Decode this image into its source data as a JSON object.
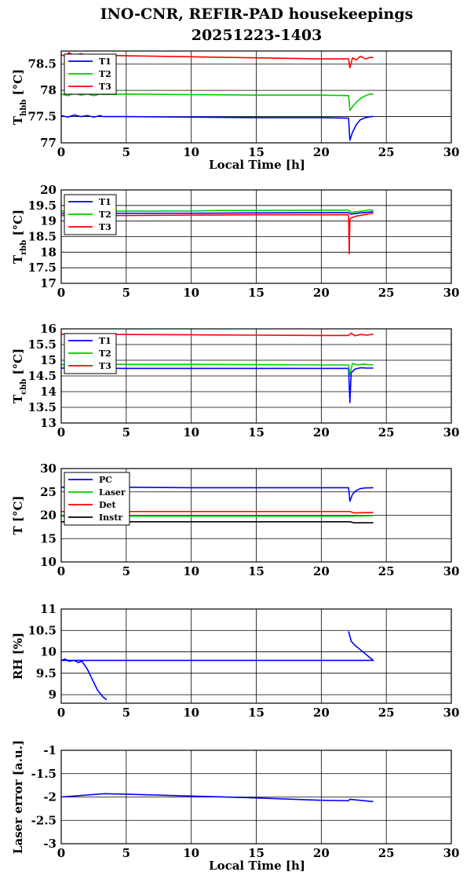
{
  "title_line1": "INO-CNR, REFIR-PAD housekeepings",
  "title_line2": "20251223-1403",
  "chart_data": [
    {
      "type": "line",
      "ylabel": "T",
      "ylabel_sub": "hbb",
      "ylabel_unit": " [°C]",
      "xlabel": "Local Time [h]",
      "xlim": [
        0,
        30
      ],
      "ylim": [
        77,
        78.75
      ],
      "yticks": [
        77,
        77.5,
        78,
        78.5
      ],
      "xticks": [
        0,
        5,
        10,
        15,
        20,
        25,
        30
      ],
      "grid": true,
      "legend_position": "top-left",
      "series": [
        {
          "name": "T1",
          "color": "#0000ff",
          "x": [
            0,
            0.5,
            1,
            1.5,
            2,
            2.5,
            3,
            3.2,
            5,
            10,
            15,
            20,
            22.1,
            22.2,
            22.4,
            22.7,
            23,
            23.4,
            23.8,
            24
          ],
          "y": [
            77.52,
            77.49,
            77.53,
            77.5,
            77.52,
            77.49,
            77.52,
            77.5,
            77.5,
            77.49,
            77.48,
            77.48,
            77.47,
            77.05,
            77.2,
            77.35,
            77.44,
            77.48,
            77.5,
            77.5
          ]
        },
        {
          "name": "T2",
          "color": "#00cc00",
          "x": [
            0,
            0.5,
            1,
            1.5,
            2,
            2.5,
            3,
            3.2,
            5,
            10,
            15,
            20,
            22.1,
            22.2,
            22.5,
            22.8,
            23.1,
            23.5,
            23.8,
            24
          ],
          "y": [
            77.93,
            77.9,
            77.94,
            77.91,
            77.93,
            77.9,
            77.93,
            77.92,
            77.93,
            77.92,
            77.91,
            77.91,
            77.9,
            77.62,
            77.72,
            77.8,
            77.86,
            77.91,
            77.93,
            77.93
          ]
        },
        {
          "name": "T3",
          "color": "#ff0000",
          "x": [
            0,
            0.3,
            0.6,
            1,
            1.5,
            2,
            2.5,
            3,
            3.2,
            5,
            10,
            15,
            20,
            22.1,
            22.2,
            22.4,
            22.7,
            23,
            23.4,
            23.8,
            24
          ],
          "y": [
            78.68,
            78.65,
            78.72,
            78.66,
            78.7,
            78.67,
            78.69,
            78.66,
            78.67,
            78.66,
            78.64,
            78.62,
            78.6,
            78.6,
            78.43,
            78.62,
            78.58,
            78.65,
            78.6,
            78.63,
            78.62
          ]
        }
      ]
    },
    {
      "type": "line",
      "ylabel": "T",
      "ylabel_sub": "rbb",
      "ylabel_unit": " [°C]",
      "xlabel": "",
      "xlim": [
        0,
        30
      ],
      "ylim": [
        17,
        20
      ],
      "yticks": [
        17,
        17.5,
        18,
        18.5,
        19,
        19.5,
        20
      ],
      "xticks": [
        0,
        5,
        10,
        15,
        20,
        25,
        30
      ],
      "grid": true,
      "legend_position": "top-left",
      "series": [
        {
          "name": "T1",
          "color": "#0000ff",
          "x": [
            0,
            5,
            10,
            15,
            20,
            22.1,
            22.3,
            22.6,
            23,
            23.5,
            24
          ],
          "y": [
            19.25,
            19.25,
            19.25,
            19.26,
            19.27,
            19.27,
            19.22,
            19.24,
            19.26,
            19.28,
            19.3
          ]
        },
        {
          "name": "T2",
          "color": "#00cc00",
          "x": [
            0,
            5,
            10,
            12,
            15,
            20,
            22.1,
            22.3,
            22.7,
            23.2,
            23.7,
            24
          ],
          "y": [
            19.32,
            19.32,
            19.32,
            19.34,
            19.34,
            19.35,
            19.35,
            19.28,
            19.3,
            19.32,
            19.36,
            19.35
          ]
        },
        {
          "name": "T3",
          "color": "#ff0000",
          "x": [
            0,
            5,
            10,
            15,
            20,
            22.1,
            22.15,
            22.2,
            22.3,
            22.6,
            23,
            23.5,
            24
          ],
          "y": [
            19.18,
            19.18,
            19.19,
            19.2,
            19.2,
            19.2,
            17.95,
            19.05,
            19.1,
            19.15,
            19.18,
            19.22,
            19.25
          ]
        }
      ]
    },
    {
      "type": "line",
      "ylabel": "T",
      "ylabel_sub": "cbb",
      "ylabel_unit": " [°C]",
      "xlabel": "",
      "xlim": [
        0,
        30
      ],
      "ylim": [
        13,
        16
      ],
      "yticks": [
        13,
        13.5,
        14,
        14.5,
        15,
        15.5,
        16
      ],
      "xticks": [
        0,
        5,
        10,
        15,
        20,
        25,
        30
      ],
      "grid": true,
      "legend_position": "top-left",
      "series": [
        {
          "name": "T1",
          "color": "#0000ff",
          "x": [
            0,
            5,
            10,
            15,
            20,
            22.1,
            22.2,
            22.3,
            22.6,
            23,
            23.5,
            24
          ],
          "y": [
            14.75,
            14.74,
            14.74,
            14.74,
            14.74,
            14.74,
            13.65,
            14.6,
            14.72,
            14.76,
            14.75,
            14.75
          ]
        },
        {
          "name": "T2",
          "color": "#00cc00",
          "x": [
            0,
            5,
            10,
            15,
            20,
            22.1,
            22.2,
            22.4,
            22.8,
            23.3,
            23.8,
            24
          ],
          "y": [
            14.86,
            14.87,
            14.87,
            14.86,
            14.85,
            14.85,
            14.55,
            14.9,
            14.85,
            14.88,
            14.85,
            14.86
          ]
        },
        {
          "name": "T3",
          "color": "#ff0000",
          "x": [
            0,
            0.5,
            1,
            2,
            3,
            5,
            10,
            15,
            20,
            22.1,
            22.3,
            22.6,
            23,
            23.5,
            24
          ],
          "y": [
            15.82,
            15.85,
            15.82,
            15.84,
            15.82,
            15.82,
            15.81,
            15.8,
            15.79,
            15.79,
            15.86,
            15.78,
            15.82,
            15.8,
            15.83
          ]
        }
      ]
    },
    {
      "type": "line",
      "ylabel": "T [°C]",
      "ylabel_sub": "",
      "ylabel_unit": "",
      "xlabel": "",
      "xlim": [
        0,
        30
      ],
      "ylim": [
        10,
        30
      ],
      "yticks": [
        10,
        15,
        20,
        25,
        30
      ],
      "xticks": [
        0,
        5,
        10,
        15,
        20,
        25,
        30
      ],
      "grid": true,
      "legend_position": "top-left",
      "series": [
        {
          "name": "PC",
          "color": "#0000ff",
          "x": [
            0,
            5,
            10,
            15,
            20,
            22.1,
            22.2,
            22.4,
            22.7,
            23,
            23.4,
            24
          ],
          "y": [
            26,
            26,
            25.9,
            25.9,
            25.9,
            25.9,
            23,
            24.5,
            25.3,
            25.7,
            25.85,
            25.9
          ]
        },
        {
          "name": "Laser",
          "color": "#00cc00",
          "x": [
            0,
            5,
            10,
            15,
            20,
            22,
            24
          ],
          "y": [
            19.8,
            19.8,
            19.8,
            19.8,
            19.8,
            19.8,
            19.9
          ]
        },
        {
          "name": "Det",
          "color": "#ff0000",
          "x": [
            0,
            5,
            10,
            15,
            20,
            22.2,
            22.5,
            24
          ],
          "y": [
            20.8,
            20.8,
            20.8,
            20.8,
            20.8,
            20.8,
            20.5,
            20.6
          ]
        },
        {
          "name": "Instr",
          "color": "#000000",
          "x": [
            0,
            5,
            10,
            15,
            20,
            22.2,
            22.5,
            24
          ],
          "y": [
            18.6,
            18.6,
            18.6,
            18.6,
            18.6,
            18.6,
            18.4,
            18.4
          ]
        }
      ]
    },
    {
      "type": "line",
      "ylabel": "RH [%]",
      "ylabel_sub": "",
      "ylabel_unit": "",
      "xlabel": "",
      "xlim": [
        0,
        30
      ],
      "ylim": [
        8.8,
        11
      ],
      "yticks": [
        9,
        9.5,
        10,
        10.5,
        11
      ],
      "xticks": [
        0,
        5,
        10,
        15,
        20,
        25,
        30
      ],
      "grid": true,
      "legend_position": "none",
      "series": [
        {
          "name": "",
          "color": "#0000ff",
          "x": [
            0,
            0.3,
            0.6,
            1,
            1.3,
            1.6,
            2,
            2.4,
            2.8,
            3.2,
            3.5,
            5,
            10,
            15,
            20,
            21.9,
            22.1,
            22.3,
            22.6,
            23,
            23.4,
            23.8,
            24,
            23.8,
            20,
            15,
            10,
            5,
            0
          ],
          "y": [
            9.8,
            9.83,
            9.78,
            9.8,
            9.75,
            9.78,
            9.6,
            9.35,
            9.1,
            8.95,
            8.88,
            null,
            null,
            null,
            null,
            null,
            10.48,
            10.25,
            10.15,
            10.05,
            9.95,
            9.85,
            9.8,
            9.8,
            9.8,
            9.8,
            9.8,
            9.8,
            9.8
          ]
        }
      ]
    },
    {
      "type": "line",
      "ylabel": "Laser error [a.u.]",
      "ylabel_sub": "",
      "ylabel_unit": "",
      "xlabel": "Local Time [h]",
      "xlim": [
        0,
        30
      ],
      "ylim": [
        -3,
        -1
      ],
      "yticks": [
        -3,
        -2.5,
        -2,
        -1.5,
        -1
      ],
      "xticks": [
        0,
        5,
        10,
        15,
        20,
        25,
        30
      ],
      "grid": true,
      "legend_position": "none",
      "series": [
        {
          "name": "",
          "color": "#0000ff",
          "x": [
            0,
            3.3,
            5,
            10,
            15,
            20,
            22.1,
            22.2,
            24
          ],
          "y": [
            -2,
            -1.93,
            -1.94,
            -1.98,
            -2.02,
            -2.07,
            -2.08,
            -2.05,
            -2.1
          ]
        }
      ]
    }
  ]
}
